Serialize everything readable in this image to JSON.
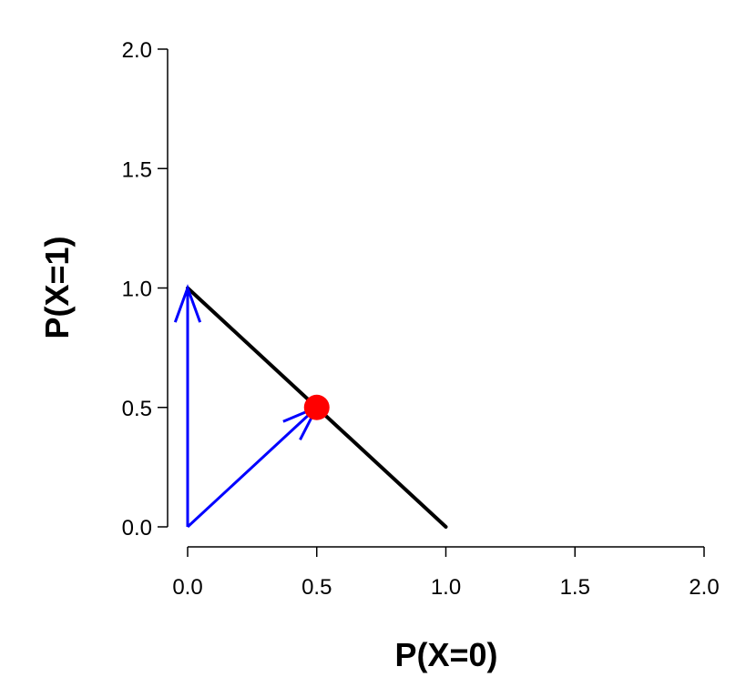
{
  "chart_data": {
    "type": "line",
    "title": "",
    "xlabel": "P(X=0)",
    "ylabel": "P(X=1)",
    "xlim": [
      0,
      2
    ],
    "ylim": [
      0,
      2
    ],
    "x_ticks": [
      "0.0",
      "0.5",
      "1.0",
      "1.5",
      "2.0"
    ],
    "y_ticks": [
      "0.0",
      "0.5",
      "1.0",
      "1.5",
      "2.0"
    ],
    "grid": false,
    "simplex_line": {
      "from": [
        0,
        1
      ],
      "to": [
        1,
        0
      ],
      "color": "#000000"
    },
    "arrows": [
      {
        "from": [
          0,
          0
        ],
        "to": [
          0,
          1
        ],
        "color": "#0000ff"
      },
      {
        "from": [
          0,
          0
        ],
        "to": [
          0.5,
          0.5
        ],
        "color": "#0000ff"
      }
    ],
    "point": {
      "x": 0.5,
      "y": 0.5,
      "color": "#ff0000"
    }
  }
}
